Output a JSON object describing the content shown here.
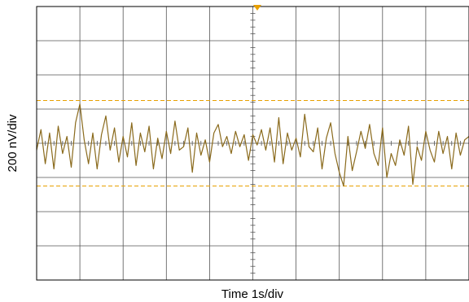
{
  "chart_data": {
    "type": "line",
    "xlabel": "Time 1s/div",
    "ylabel": "200 nV/div",
    "x_divisions": 10,
    "y_divisions": 8,
    "xlim": [
      0,
      10
    ],
    "ylim": [
      -800,
      800
    ],
    "x_unit": "s",
    "y_unit": "nV",
    "grid": true,
    "cursor_lines_nV": [
      250,
      -250
    ],
    "series": [
      {
        "color": "#8a6a1c",
        "x": [
          0.0,
          0.1,
          0.2,
          0.3,
          0.4,
          0.5,
          0.6,
          0.7,
          0.8,
          0.9,
          1.0,
          1.1,
          1.2,
          1.3,
          1.4,
          1.5,
          1.6,
          1.7,
          1.8,
          1.9,
          2.0,
          2.1,
          2.2,
          2.3,
          2.4,
          2.5,
          2.6,
          2.7,
          2.8,
          2.9,
          3.0,
          3.1,
          3.2,
          3.3,
          3.4,
          3.5,
          3.6,
          3.7,
          3.8,
          3.9,
          4.0,
          4.1,
          4.2,
          4.3,
          4.4,
          4.5,
          4.6,
          4.7,
          4.8,
          4.9,
          5.0,
          5.1,
          5.2,
          5.3,
          5.4,
          5.5,
          5.6,
          5.7,
          5.8,
          5.9,
          6.0,
          6.1,
          6.2,
          6.3,
          6.4,
          6.5,
          6.6,
          6.7,
          6.8,
          6.9,
          7.0,
          7.1,
          7.2,
          7.3,
          7.4,
          7.5,
          7.6,
          7.7,
          7.8,
          7.9,
          8.0,
          8.1,
          8.2,
          8.3,
          8.4,
          8.5,
          8.6,
          8.7,
          8.8,
          8.9,
          9.0,
          9.1,
          9.2,
          9.3,
          9.4,
          9.5,
          9.6,
          9.7,
          9.8,
          9.9,
          10.0
        ],
        "values": [
          -40,
          80,
          -120,
          60,
          -150,
          100,
          -60,
          40,
          -140,
          120,
          230,
          20,
          -120,
          60,
          -150,
          50,
          160,
          -40,
          90,
          -110,
          40,
          -80,
          120,
          -130,
          60,
          -50,
          100,
          -150,
          30,
          -90,
          70,
          -60,
          130,
          -40,
          -20,
          90,
          -170,
          60,
          -70,
          20,
          -110,
          60,
          110,
          -20,
          40,
          -60,
          70,
          -20,
          50,
          -100,
          50,
          -10,
          80,
          -40,
          90,
          -110,
          150,
          -120,
          60,
          -40,
          30,
          -80,
          170,
          -20,
          -50,
          90,
          -150,
          30,
          120,
          -60,
          -170,
          -250,
          40,
          -160,
          -50,
          70,
          -30,
          110,
          -60,
          -130,
          90,
          -200,
          -60,
          -130,
          20,
          -70,
          100,
          -240,
          -20,
          -100,
          70,
          -40,
          -110,
          70,
          -60,
          40,
          -150,
          60,
          -70,
          20,
          40
        ]
      }
    ]
  }
}
